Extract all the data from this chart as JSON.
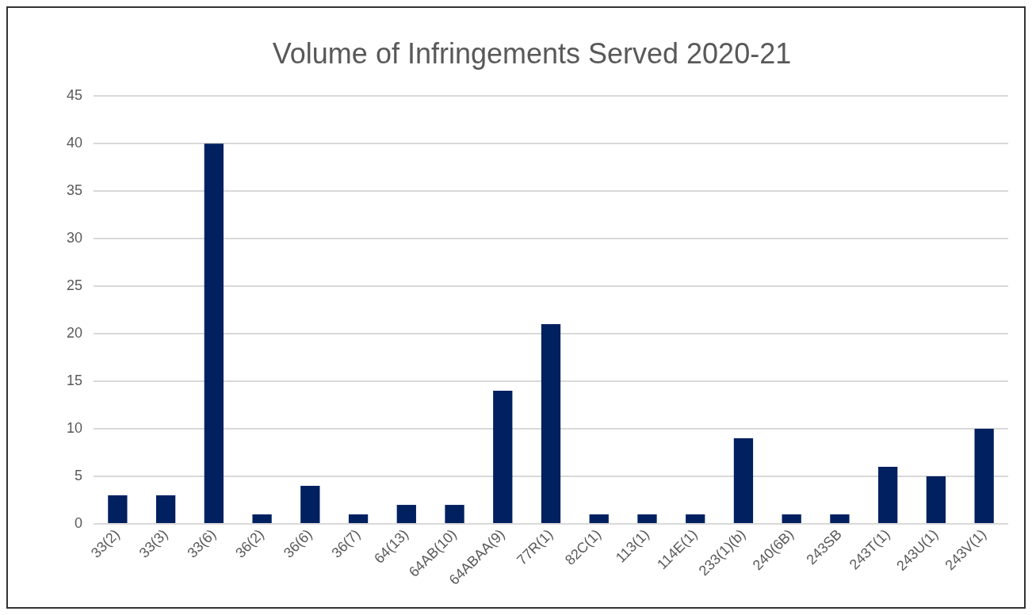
{
  "chart_data": {
    "type": "bar",
    "title": "Volume of Infringements Served 2020-21",
    "categories": [
      "33(2)",
      "33(3)",
      "33(6)",
      "36(2)",
      "36(6)",
      "36(7)",
      "64(13)",
      "64AB(10)",
      "64ABAA(9)",
      "77R(1)",
      "82C(1)",
      "113(1)",
      "114E(1)",
      "233(1)(b)",
      "240(6B)",
      "243SB",
      "243T(1)",
      "243U(1)",
      "243V(1)"
    ],
    "values": [
      3,
      3,
      40,
      1,
      4,
      1,
      2,
      2,
      14,
      21,
      1,
      1,
      1,
      9,
      1,
      1,
      6,
      5,
      10
    ],
    "color": "#002060",
    "ylim": [
      0,
      45
    ],
    "yticks": [
      0,
      5,
      10,
      15,
      20,
      25,
      30,
      35,
      40,
      45
    ],
    "grid": "y"
  }
}
